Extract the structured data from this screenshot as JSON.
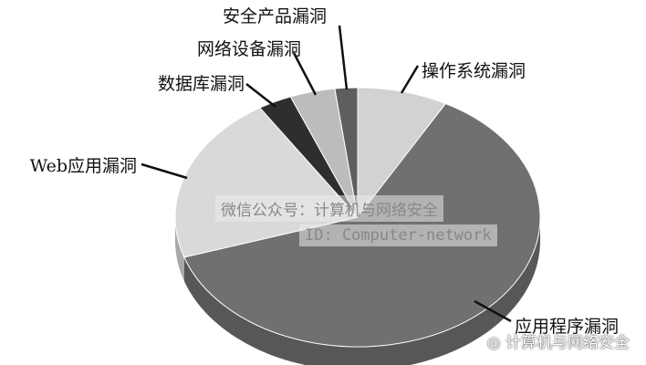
{
  "chart_data": {
    "type": "pie",
    "style": "3d",
    "categories": [
      "操作系统漏洞",
      "应用程序漏洞",
      "Web应用漏洞",
      "数据库漏洞",
      "网络设备漏洞",
      "安全产品漏洞"
    ],
    "values": [
      8,
      62,
      21,
      3,
      4,
      2
    ],
    "colors": [
      "#d2d2d2",
      "#707070",
      "#d9d9d9",
      "#2e2e2e",
      "#bcbcbc",
      "#5e5e5e"
    ],
    "title": "",
    "legend": "none, leader-line labels"
  },
  "watermark": {
    "line1": "微信公众号：计算机与网络安全",
    "line2": "ID: Computer-network",
    "logo_text": "计算机与网络安全"
  }
}
